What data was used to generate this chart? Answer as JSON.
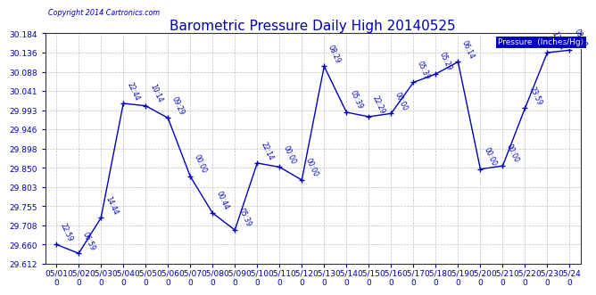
{
  "title": "Barometric Pressure Daily High 20140525",
  "copyright": "Copyright 2014 Cartronics.com",
  "legend_label": "Pressure  (Inches/Hg)",
  "ylim": [
    29.612,
    30.184
  ],
  "yticks": [
    29.612,
    29.66,
    29.708,
    29.755,
    29.803,
    29.85,
    29.898,
    29.946,
    29.993,
    30.041,
    30.088,
    30.136,
    30.184
  ],
  "x_labels": [
    "05/01",
    "05/02",
    "05/03",
    "05/04",
    "05/05",
    "05/06",
    "05/07",
    "05/08",
    "05/09",
    "05/10",
    "05/11",
    "05/12",
    "05/13",
    "05/14",
    "05/15",
    "05/16",
    "05/17",
    "05/18",
    "05/19",
    "05/20",
    "05/21",
    "05/22",
    "05/23",
    "05/24"
  ],
  "data_x": [
    0,
    1,
    2,
    3,
    4,
    5,
    6,
    7,
    8,
    9,
    10,
    11,
    12,
    13,
    14,
    15,
    16,
    17,
    18,
    19,
    20,
    21,
    22,
    23
  ],
  "data_y": [
    29.66,
    29.638,
    29.726,
    30.01,
    30.004,
    29.974,
    29.829,
    29.738,
    29.696,
    29.862,
    29.852,
    29.82,
    30.102,
    29.988,
    29.977,
    29.985,
    30.062,
    30.083,
    30.113,
    29.847,
    29.855,
    29.998,
    30.136,
    30.142
  ],
  "data_labels": [
    "22:59",
    "06:59",
    "14:44",
    "22:44",
    "10:14",
    "09:29",
    "00:00",
    "00:44",
    "05:39",
    "22:14",
    "00:00",
    "00:00",
    "08:29",
    "05:39",
    "22:29",
    "00:00",
    "05:39",
    "05:29",
    "06:14",
    "00:00",
    "00:00",
    "23:59",
    "13:14",
    "08:08"
  ],
  "line_color": "#0000bb",
  "bg_color": "#ffffff",
  "grid_color": "#bbbbbb",
  "title_fontsize": 11,
  "tick_fontsize": 6.5,
  "label_fontsize": 5.5
}
